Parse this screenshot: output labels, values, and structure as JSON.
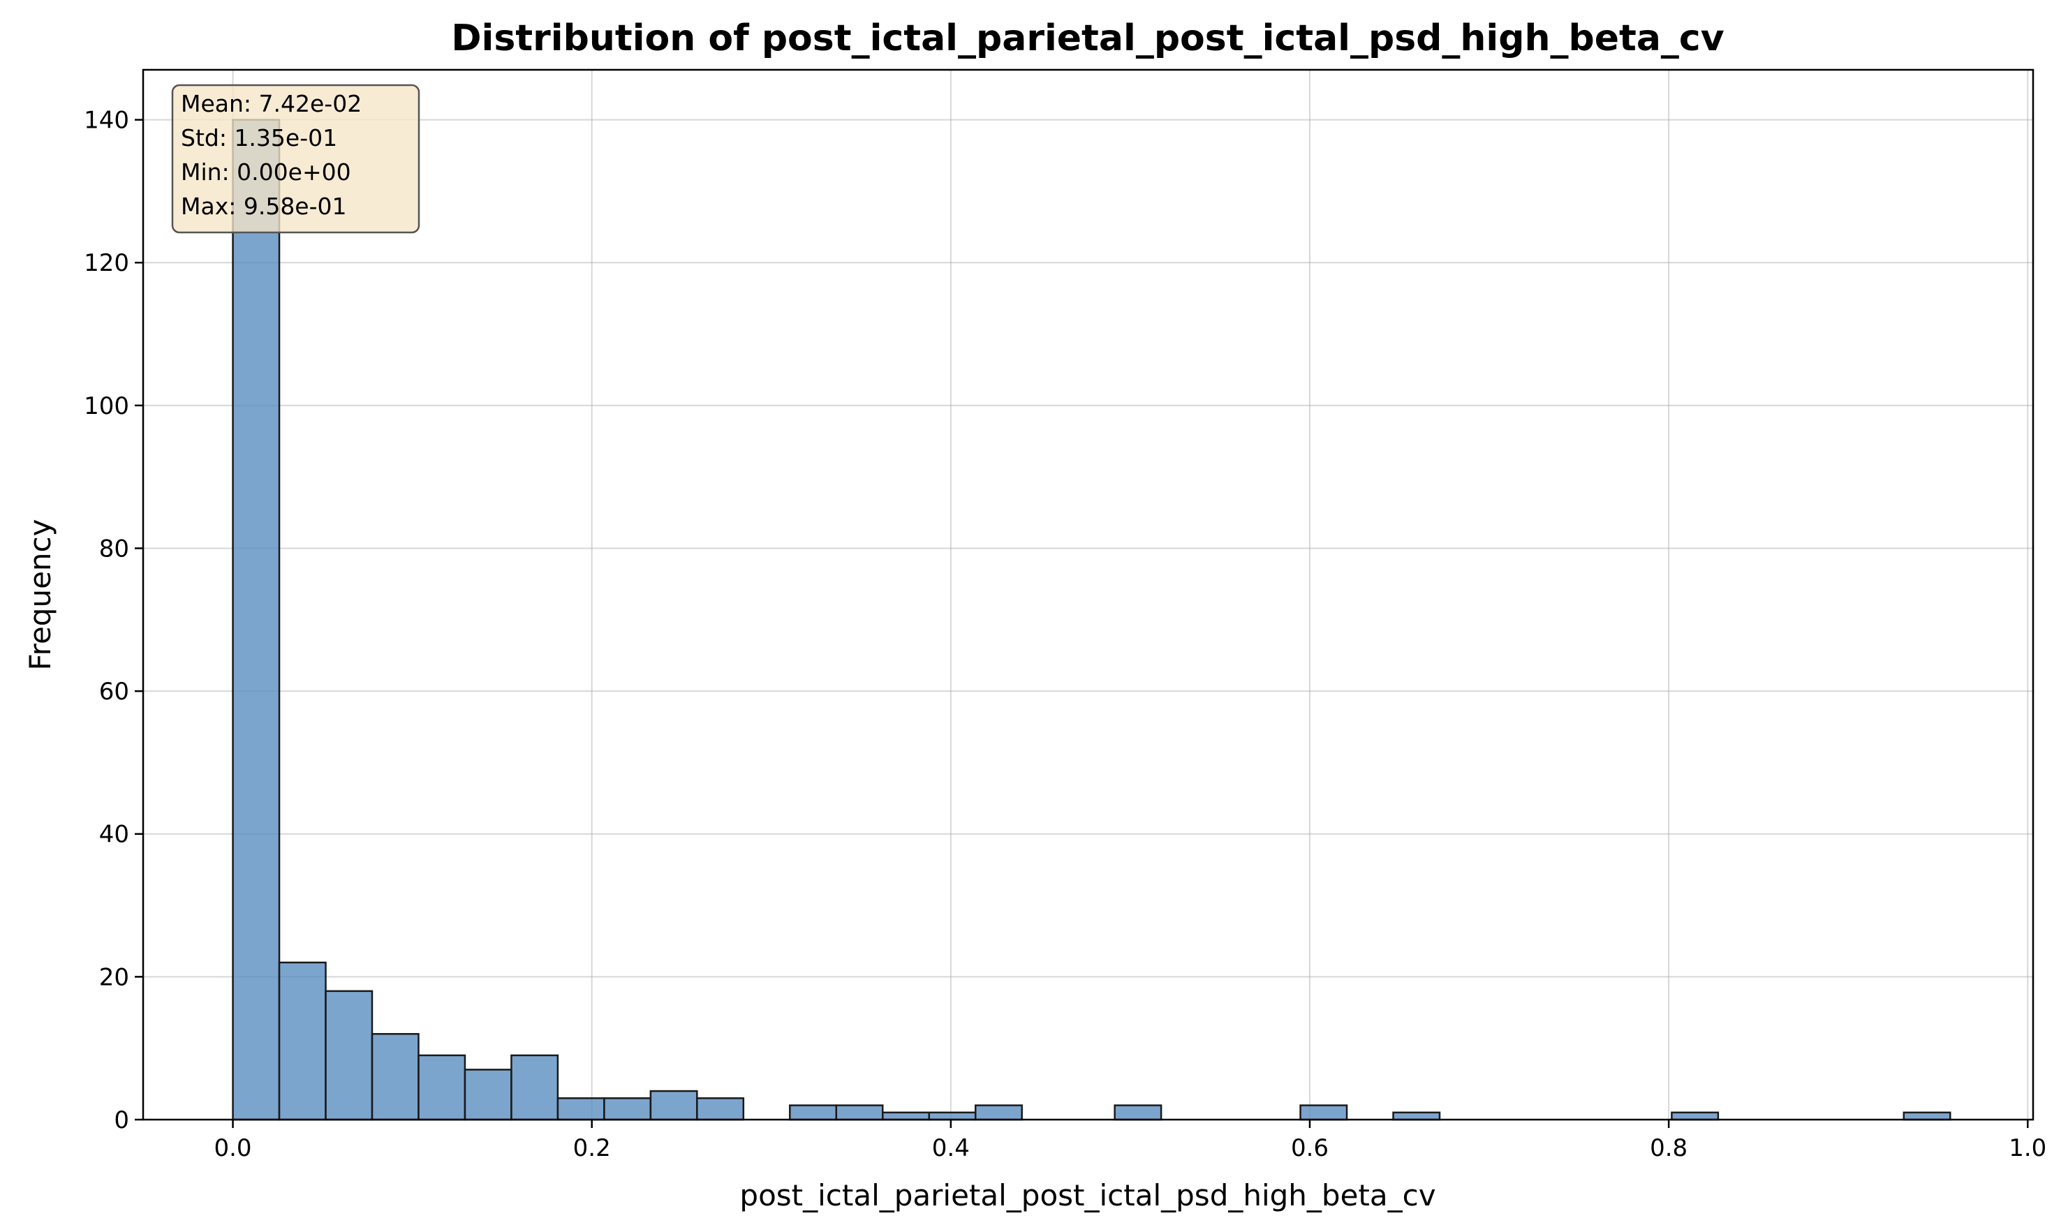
{
  "chart_data": {
    "type": "bar",
    "title": "Distribution of post_ictal_parietal_post_ictal_psd_high_beta_cv",
    "xlabel": "post_ictal_parietal_post_ictal_psd_high_beta_cv",
    "ylabel": "Frequency",
    "xlim": [
      -0.05,
      1.003
    ],
    "ylim": [
      0,
      147
    ],
    "xticks": [
      "0.0",
      "0.2",
      "0.4",
      "0.6",
      "0.8",
      "1.0"
    ],
    "xtick_values": [
      0.0,
      0.2,
      0.4,
      0.6,
      0.8,
      1.0
    ],
    "yticks": [
      "0",
      "20",
      "40",
      "60",
      "80",
      "100",
      "120",
      "140"
    ],
    "ytick_values": [
      0,
      20,
      40,
      60,
      80,
      100,
      120,
      140
    ],
    "bin_start": 0.0,
    "bin_width": 0.02586,
    "counts": [
      140,
      22,
      18,
      12,
      9,
      7,
      9,
      3,
      3,
      4,
      3,
      0,
      2,
      2,
      1,
      1,
      2,
      0,
      0,
      2,
      0,
      0,
      0,
      2,
      0,
      1,
      0,
      0,
      0,
      0,
      0,
      1,
      0,
      0,
      0,
      0,
      1
    ],
    "grid": true,
    "bar_color": "#5b8fc2",
    "bar_edge_color": "#1a1a1a",
    "stats_box": {
      "lines": [
        "Mean: 7.42e-02",
        "Std: 1.35e-01",
        "Min: 0.00e+00",
        "Max: 9.58e-01"
      ],
      "background": "#f5e6c8",
      "placement": "top-left"
    }
  }
}
